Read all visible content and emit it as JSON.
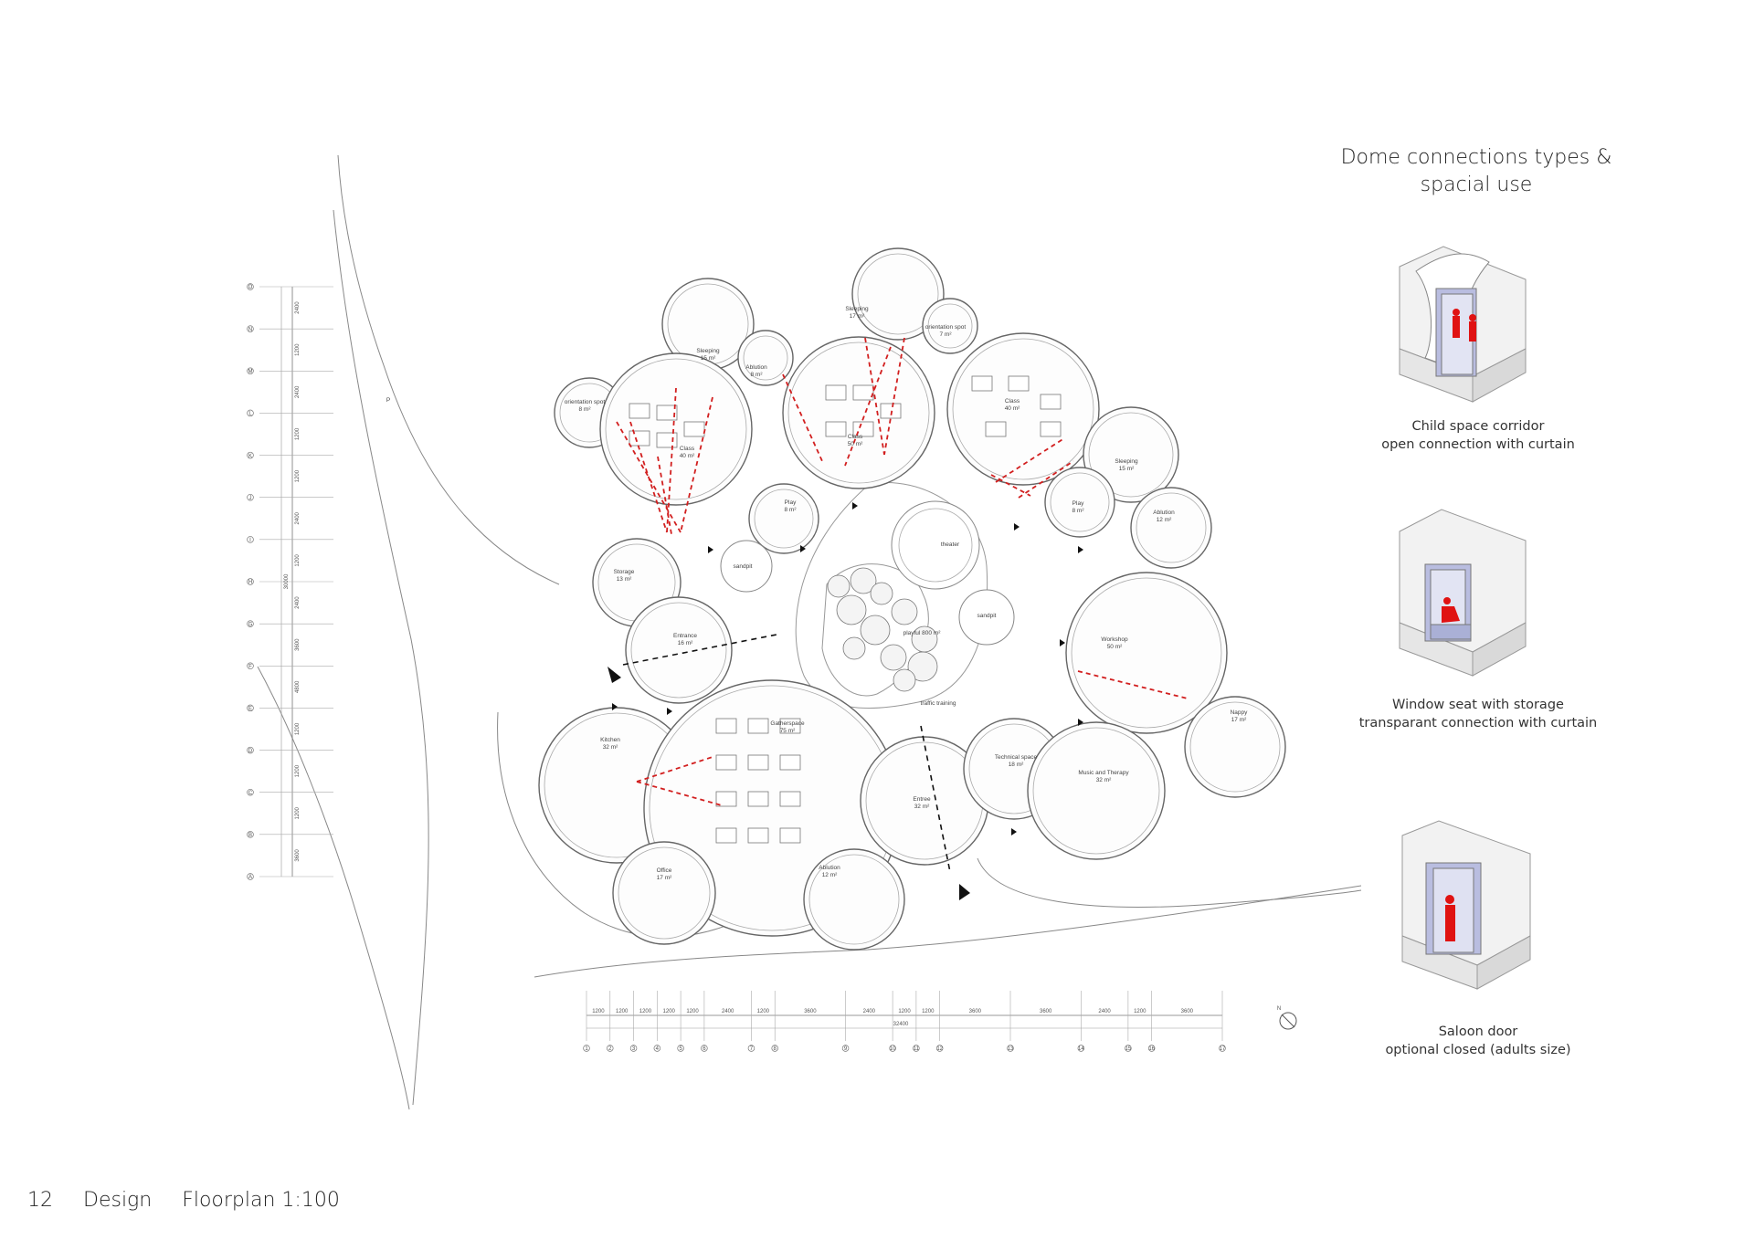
{
  "side_panel": {
    "title_line1": "Dome connections types &",
    "title_line2": "spacial use",
    "items": [
      {
        "line1": "Child space corridor",
        "line2": "open connection with curtain"
      },
      {
        "line1": "Window seat with storage",
        "line2": "transparant connection with curtain"
      },
      {
        "line1": "Saloon door",
        "line2": "optional closed (adults size)"
      }
    ]
  },
  "footer": {
    "page": "12",
    "section": "Design",
    "title": "Floorplan 1:100"
  },
  "plan": {
    "rooms": [
      {
        "name": "orientation spot",
        "area": "8 m²"
      },
      {
        "name": "Sleeping",
        "area": "15 m²"
      },
      {
        "name": "Ablution",
        "area": "8 m²"
      },
      {
        "name": "Sleeping",
        "area": "17 m²"
      },
      {
        "name": "orientation spot",
        "area": "7 m²"
      },
      {
        "name": "Class",
        "area": "40 m²"
      },
      {
        "name": "Class",
        "area": "50 m²"
      },
      {
        "name": "Class",
        "area": "40 m²"
      },
      {
        "name": "Sleeping",
        "area": "15 m²"
      },
      {
        "name": "Play",
        "area": "8 m²"
      },
      {
        "name": "Play",
        "area": "8 m²"
      },
      {
        "name": "Ablution",
        "area": "12 m²"
      },
      {
        "name": "Storage",
        "area": "13 m²"
      },
      {
        "name": "sandpit",
        "area": ""
      },
      {
        "name": "theater",
        "area": ""
      },
      {
        "name": "sandpit",
        "area": ""
      },
      {
        "name": "Entrance",
        "area": "16 m²"
      },
      {
        "name": "playful 800 m²",
        "area": ""
      },
      {
        "name": "Workshop",
        "area": "50 m²"
      },
      {
        "name": "traffic training",
        "area": ""
      },
      {
        "name": "Kitchen",
        "area": "32 m²"
      },
      {
        "name": "Gatherspace",
        "area": "75 m²"
      },
      {
        "name": "Entree",
        "area": "32 m²"
      },
      {
        "name": "Technical space",
        "area": "18 m²"
      },
      {
        "name": "Music and Therapy",
        "area": "32 m²"
      },
      {
        "name": "Nappy",
        "area": "17 m²"
      },
      {
        "name": "Office",
        "area": "17 m²"
      },
      {
        "name": "Ablution",
        "area": "12 m²"
      }
    ],
    "site_label": "P",
    "left_axis": {
      "labels": [
        "O",
        "N",
        "M",
        "L",
        "K",
        "J",
        "I",
        "H",
        "G",
        "F",
        "E",
        "D",
        "C",
        "B",
        "A"
      ],
      "dims": [
        "2400",
        "1200",
        "2400",
        "1200",
        "1200",
        "2400",
        "1200",
        "2400",
        "3600",
        "4800",
        "1200",
        "1200",
        "1200",
        "3600"
      ],
      "total": "30000"
    },
    "bottom_axis": {
      "labels": [
        "1",
        "2",
        "3",
        "4",
        "5",
        "6",
        "7",
        "8",
        "9",
        "10",
        "11",
        "12",
        "13",
        "14",
        "15",
        "16",
        "17"
      ],
      "dims": [
        "1200",
        "1200",
        "1200",
        "1200",
        "1200",
        "2400",
        "1200",
        "3600",
        "2400",
        "1200",
        "1200",
        "3600",
        "3600",
        "2400",
        "1200",
        "3600"
      ],
      "total": "32400"
    },
    "north": "N"
  }
}
